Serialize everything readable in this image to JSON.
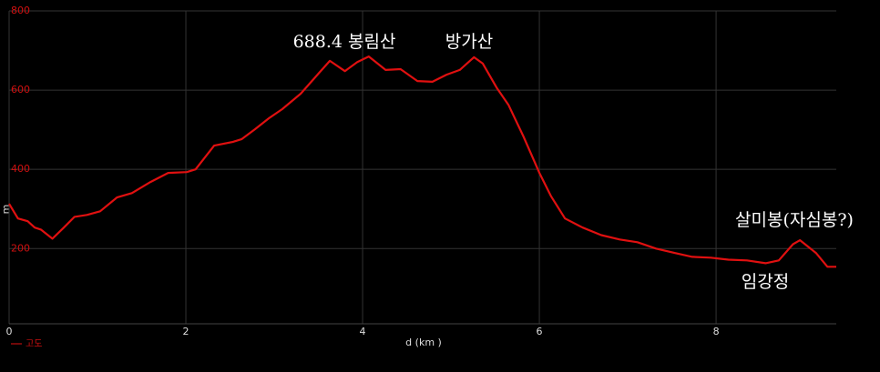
{
  "chart_data": {
    "type": "line",
    "x_label": "d (km )",
    "y_label": "m",
    "x": [
      0,
      0.1,
      0.21,
      0.29,
      0.36,
      0.49,
      0.62,
      0.74,
      0.88,
      1.03,
      1.22,
      1.39,
      1.6,
      1.8,
      2.01,
      2.11,
      2.32,
      2.53,
      2.63,
      2.78,
      2.94,
      3.09,
      3.3,
      3.51,
      3.63,
      3.8,
      3.94,
      4.07,
      4.12,
      4.26,
      4.43,
      4.62,
      4.79,
      4.95,
      5.1,
      5.26,
      5.36,
      5.52,
      5.65,
      5.82,
      6.0,
      6.13,
      6.29,
      6.49,
      6.7,
      6.91,
      7.11,
      7.32,
      7.53,
      7.73,
      7.94,
      8.14,
      8.35,
      8.56,
      8.71,
      8.87,
      8.95,
      9.13,
      9.26,
      9.36
    ],
    "series": [
      {
        "name": "고도",
        "color": "#e01010",
        "values": [
          313,
          276,
          269,
          253,
          248,
          225,
          253,
          280,
          285,
          294,
          329,
          340,
          368,
          391,
          393,
          400,
          460,
          469,
          476,
          501,
          529,
          552,
          591,
          644,
          674,
          648,
          671,
          685,
          676,
          651,
          653,
          623,
          621,
          639,
          651,
          683,
          667,
          605,
          563,
          483,
          391,
          333,
          276,
          253,
          234,
          223,
          216,
          200,
          189,
          179,
          177,
          172,
          170,
          163,
          170,
          211,
          221,
          189,
          154,
          154
        ]
      }
    ],
    "xlim": [
      0,
      9.36
    ],
    "xticks": [
      0,
      2,
      4,
      6,
      8
    ],
    "ylim": [
      10,
      800
    ],
    "yticks": [
      200,
      400,
      600,
      800
    ],
    "grid": true,
    "legend": "bottom-left",
    "annotations": [
      "688.4 봉림산",
      "방가산",
      "살미봉(자심봉?)",
      "임강정"
    ]
  }
}
